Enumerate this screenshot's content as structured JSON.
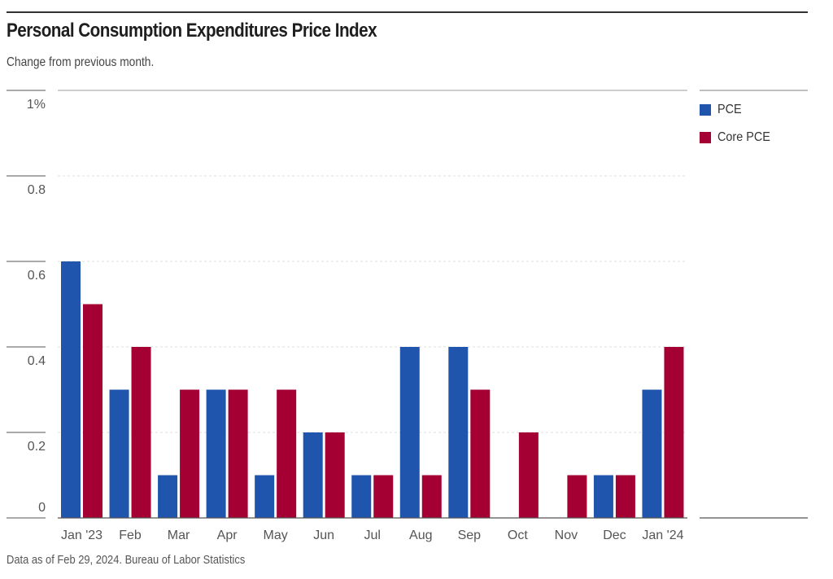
{
  "header": {
    "title": "Personal Consumption Expenditures Price Index",
    "subtitle": "Change from previous month."
  },
  "footer": {
    "source_note": "Data as of Feb 29, 2024. Bureau of Labor Statistics"
  },
  "legend": {
    "items": [
      {
        "label": "PCE",
        "color": "#2055ae"
      },
      {
        "label": "Core PCE",
        "color": "#a50034"
      }
    ]
  },
  "chart_data": {
    "type": "bar",
    "title": "Personal Consumption Expenditures Price Index",
    "subtitle": "Change from previous month.",
    "xlabel": "",
    "ylabel": "",
    "categories": [
      "Jan '23",
      "Feb",
      "Mar",
      "Apr",
      "May",
      "Jun",
      "Jul",
      "Aug",
      "Sep",
      "Oct",
      "Nov",
      "Dec",
      "Jan '24"
    ],
    "series": [
      {
        "name": "PCE",
        "color": "#2055ae",
        "values": [
          0.6,
          0.3,
          0.1,
          0.3,
          0.1,
          0.2,
          0.1,
          0.4,
          0.4,
          0.0,
          0.0,
          0.1,
          0.3
        ]
      },
      {
        "name": "Core PCE",
        "color": "#a50034",
        "values": [
          0.5,
          0.4,
          0.3,
          0.3,
          0.3,
          0.2,
          0.1,
          0.1,
          0.3,
          0.2,
          0.1,
          0.1,
          0.4
        ]
      }
    ],
    "ylim": [
      0,
      1
    ],
    "yticks": [
      0,
      0.2,
      0.4,
      0.6,
      0.8,
      1
    ],
    "ytick_labels": [
      "0",
      "0.2",
      "0.4",
      "0.6",
      "0.8",
      "1%"
    ],
    "grid": true,
    "legend_position": "right"
  }
}
